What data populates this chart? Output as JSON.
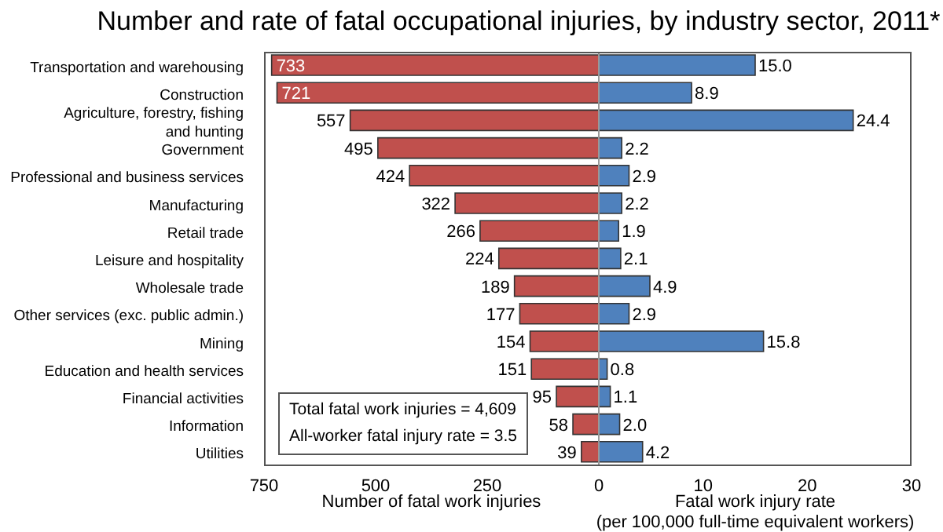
{
  "chart_data": [
    {
      "type": "bar",
      "orientation": "horizontal",
      "title": "Number and rate of fatal occupational injuries, by industry sector, 2011*",
      "categories": [
        "Transportation and warehousing",
        "Construction",
        "Agriculture, forestry, fishing and hunting",
        "Government",
        "Professional and business services",
        "Manufacturing",
        "Retail trade",
        "Leisure and hospitality",
        "Wholesale trade",
        "Other services (exc. public admin.)",
        "Mining",
        "Education and health services",
        "Financial activities",
        "Information",
        "Utilities"
      ],
      "values": [
        733,
        721,
        557,
        495,
        424,
        322,
        266,
        224,
        189,
        177,
        154,
        151,
        95,
        58,
        39
      ],
      "color": "#c0504d",
      "xlim": [
        750,
        0
      ],
      "xticks": [
        750,
        500,
        250
      ],
      "xlabel": "Number of fatal work injuries",
      "data_labels": true,
      "annotations": [
        "Total fatal work injuries = 4,609",
        "All-worker fatal injury rate = 3.5"
      ]
    },
    {
      "type": "bar",
      "orientation": "horizontal",
      "values": [
        15.0,
        8.9,
        24.4,
        2.2,
        2.9,
        2.2,
        1.9,
        2.1,
        4.9,
        2.9,
        15.8,
        0.8,
        1.1,
        2.0,
        4.2
      ],
      "value_labels": [
        "15.0",
        "8.9",
        "24.4",
        "2.2",
        "2.9",
        "2.2",
        "1.9",
        "2.1",
        "4.9",
        "2.9",
        "15.8",
        "0.8",
        "1.1",
        "2.0",
        "4.2"
      ],
      "color": "#4f81bd",
      "xlim": [
        0,
        30
      ],
      "xticks": [
        0,
        10,
        20,
        30
      ],
      "xlabel": "Fatal work injury rate\n(per 100,000 full-time equivalent workers)",
      "tick_labels": "x"
    }
  ]
}
